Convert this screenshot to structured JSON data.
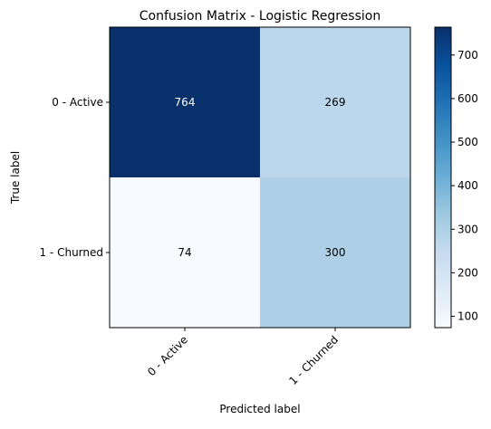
{
  "chart_data": {
    "type": "heatmap",
    "title": "Confusion Matrix - Logistic Regression",
    "xlabel": "Predicted label",
    "ylabel": "True label",
    "x_categories": [
      "0 - Active",
      "1 - Churned"
    ],
    "y_categories": [
      "0 - Active",
      "1 - Churned"
    ],
    "values": [
      [
        764,
        269
      ],
      [
        74,
        300
      ]
    ],
    "colormap": "Blues",
    "colorbar": {
      "min": 74,
      "max": 764,
      "ticks": [
        100,
        200,
        300,
        400,
        500,
        600,
        700
      ]
    },
    "colors": {
      "text_on_dark": "#ffffff",
      "text_on_light": "#000000"
    }
  }
}
